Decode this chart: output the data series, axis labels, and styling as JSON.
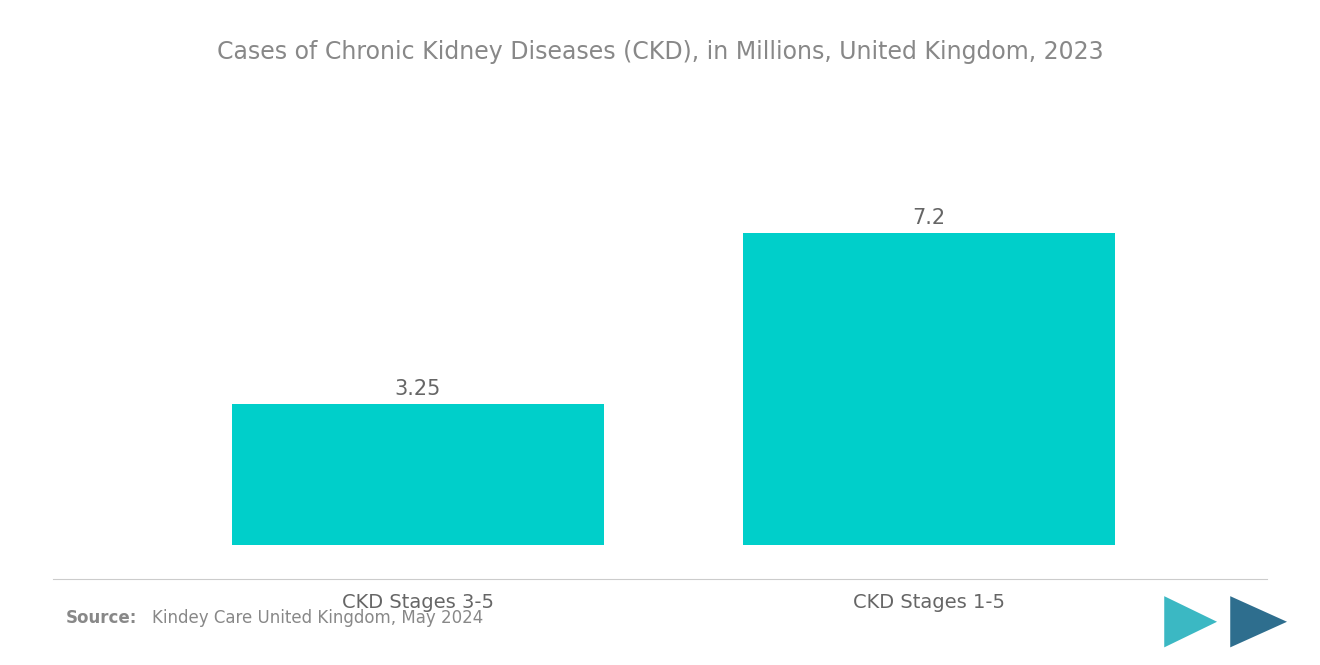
{
  "title": "Cases of Chronic Kidney Diseases (CKD), in Millions, United Kingdom, 2023",
  "categories": [
    "CKD Stages 3-5",
    "CKD Stages 1-5"
  ],
  "values": [
    3.25,
    7.2
  ],
  "bar_color": "#00CFCA",
  "background_color": "#ffffff",
  "title_color": "#888888",
  "label_color": "#666666",
  "value_color": "#666666",
  "source_bold": "Source:",
  "source_text": "Kindey Care United Kingdom, May 2024",
  "source_color": "#888888",
  "title_fontsize": 17,
  "label_fontsize": 14,
  "value_fontsize": 15,
  "source_fontsize": 12,
  "ylim": [
    0,
    9.5
  ],
  "bar_width": 0.32
}
